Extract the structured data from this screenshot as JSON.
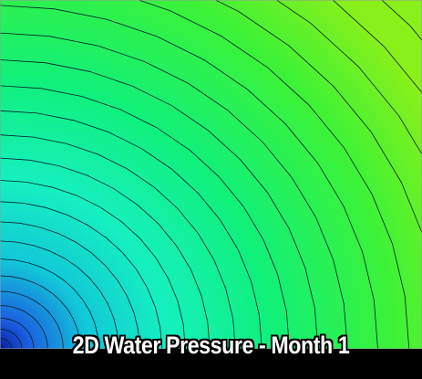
{
  "chart_data": {
    "type": "heatmap",
    "title": "2D Water Pressure - Month 1",
    "xlabel": "",
    "ylabel": "",
    "contour_levels": 28,
    "colormap": [
      "#0a1ea8",
      "#1b5fe0",
      "#11c8d8",
      "#15f0c0",
      "#10f07a",
      "#3cf237",
      "#8af01a"
    ],
    "grid": false,
    "legend": "none"
  },
  "colors": {
    "caption_background": "#000000",
    "title_text": "#ffffff"
  }
}
